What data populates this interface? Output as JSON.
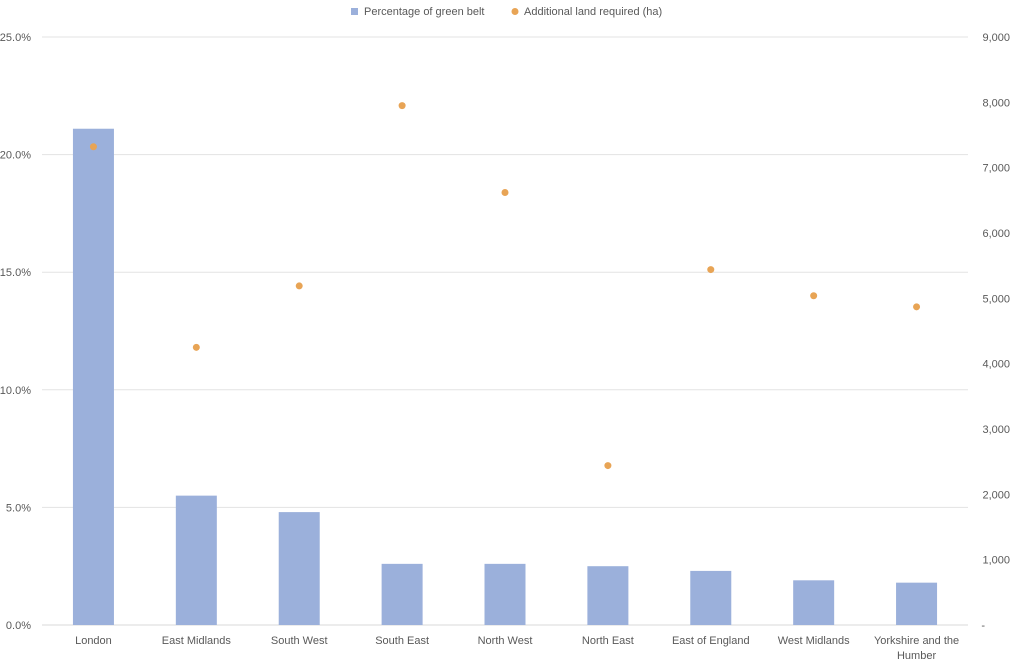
{
  "chart_data": {
    "type": "bar",
    "categories": [
      "London",
      "East Midlands",
      "South West",
      "South East",
      "North West",
      "North East",
      "East of England",
      "West Midlands",
      "Yorkshire and the Humber"
    ],
    "category_label_lines": [
      [
        "London"
      ],
      [
        "East Midlands"
      ],
      [
        "South West"
      ],
      [
        "South East"
      ],
      [
        "North West"
      ],
      [
        "North East"
      ],
      [
        "East of England"
      ],
      [
        "West Midlands"
      ],
      [
        "Yorkshire and the",
        "Humber"
      ]
    ],
    "series": [
      {
        "name": "Percentage of green belt",
        "kind": "bar",
        "axis": "left",
        "color": "#9bb0db",
        "values": [
          0.211,
          0.055,
          0.048,
          0.026,
          0.026,
          0.025,
          0.023,
          0.019,
          0.018
        ]
      },
      {
        "name": "Additional land required (ha)",
        "kind": "scatter",
        "axis": "right",
        "color": "#e8a455",
        "values": [
          7320,
          4250,
          5190,
          7950,
          6620,
          2440,
          5440,
          5040,
          4870
        ]
      }
    ],
    "left_axis": {
      "min": 0,
      "max": 0.25,
      "ticks": [
        "0.0%",
        "5.0%",
        "10.0%",
        "15.0%",
        "20.0%",
        "25.0%"
      ]
    },
    "right_axis": {
      "min": 0,
      "max": 9000,
      "ticks": [
        "-",
        "1,000",
        "2,000",
        "3,000",
        "4,000",
        "5,000",
        "6,000",
        "7,000",
        "8,000",
        "9,000"
      ]
    },
    "grid": true,
    "legend_position": "top-center"
  }
}
